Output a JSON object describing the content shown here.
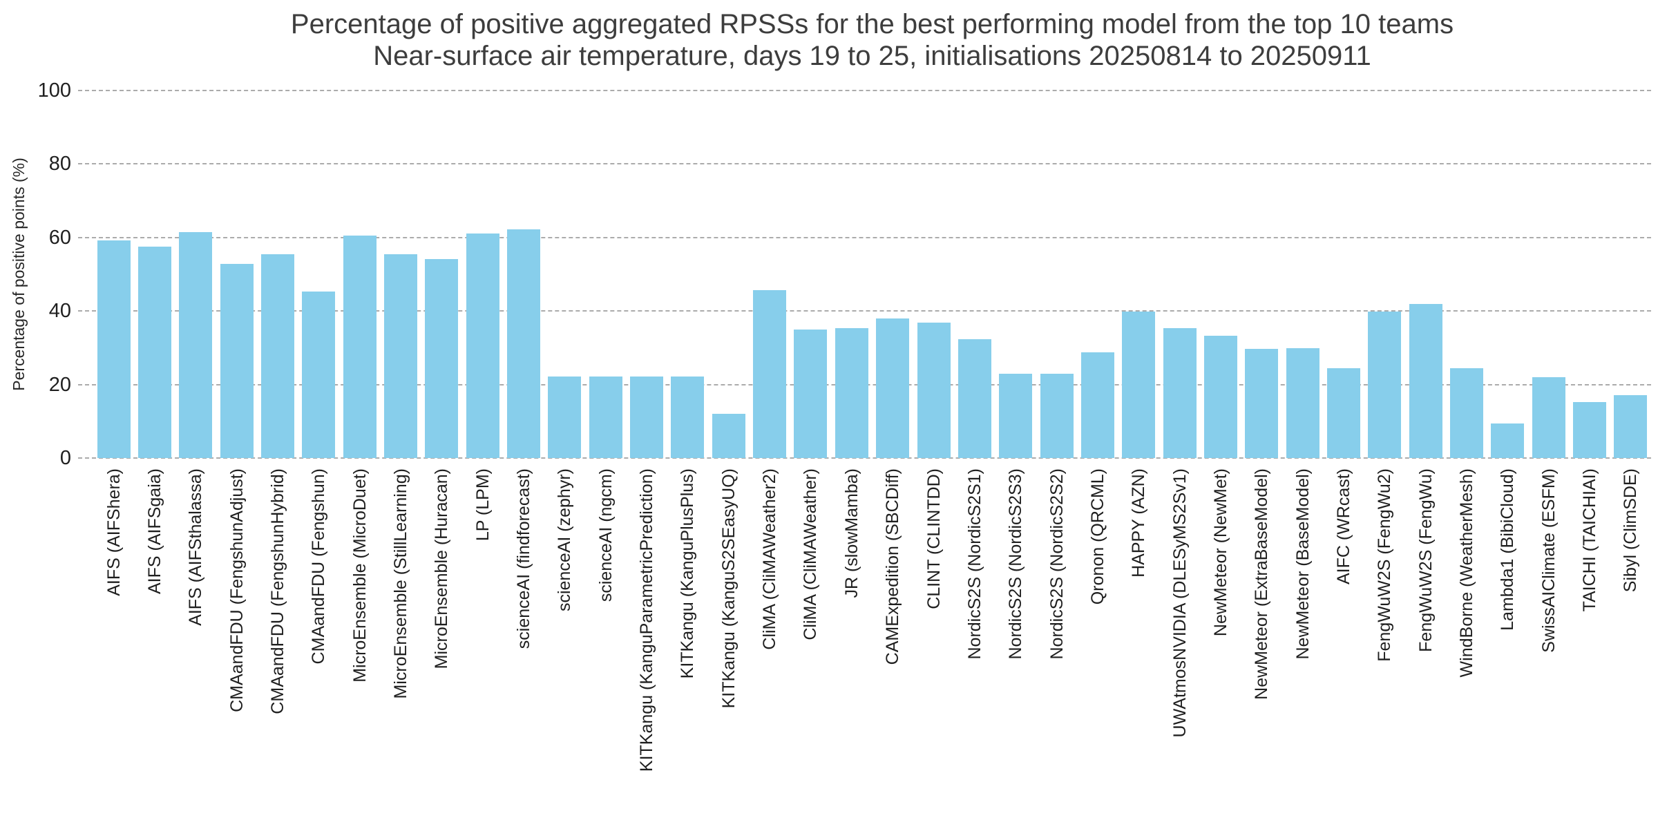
{
  "chart_data": {
    "type": "bar",
    "title": "Percentage of positive aggregated RPSSs for the best performing model from the top 10 teams",
    "subtitle": "Near-surface air temperature, days 19 to 25, initialisations 20250814 to 20250911",
    "xlabel": "",
    "ylabel": "Percentage of positive points (%)",
    "ylim": [
      0,
      100
    ],
    "yticks": [
      0,
      20,
      40,
      60,
      80,
      100
    ],
    "grid": "horizontal-dashed",
    "legend": "none",
    "bar_color": "#87CEEB",
    "categories": [
      "AIFS (AIFShera)",
      "AIFS (AIFSgaia)",
      "AIFS (AIFSthalassa)",
      "CMAandFDU (FengshunAdjust)",
      "CMAandFDU (FengshunHybrid)",
      "CMAandFDU (Fengshun)",
      "MicroEnsemble (MicroDuet)",
      "MicroEnsemble (StillLearning)",
      "MicroEnsemble (Huracan)",
      "LP (LPM)",
      "scienceAI (findforecast)",
      "scienceAI (zephyr)",
      "scienceAI (ngcm)",
      "KITKangu (KanguParametricPrediction)",
      "KITKangu (KanguPlusPlus)",
      "KITKangu (KanguS2SEasyUQ)",
      "CliMA (CliMAWeather2)",
      "CliMA (CliMAWeather)",
      "JR (slowMamba)",
      "CAMExpedition (SBCDiff)",
      "CLINT (CLINTDD)",
      "NordicS2S (NordicS2S1)",
      "NordicS2S (NordicS2S3)",
      "NordicS2S (NordicS2S2)",
      "Qronon (QRCML)",
      "HAPPY (AZN)",
      "UWAtmosNVIDIA (DLESyMS2Sv1)",
      "NewMeteor (NewMet)",
      "NewMeteor (ExtraBaseModel)",
      "NewMeteor (BaseModel)",
      "AIFC (WRcast)",
      "FengWuW2S (FengWu2)",
      "FengWuW2S (FengWu)",
      "WindBorne (WeatherMesh)",
      "Lambda1 (BibiCloud)",
      "SwissAIClimate (ESFM)",
      "TAICHI (TAICHIAI)",
      "Sibyl (ClimSDE)"
    ],
    "values": [
      59.2,
      57.5,
      61.5,
      52.9,
      55.5,
      45.3,
      60.6,
      55.5,
      54.1,
      61.1,
      62.2,
      22.1,
      22.1,
      22.1,
      22.1,
      12.1,
      45.7,
      34.9,
      35.3,
      38.0,
      36.8,
      32.3,
      23.0,
      23.0,
      28.8,
      39.9,
      35.3,
      33.3,
      29.7,
      29.9,
      24.4,
      39.9,
      42.0,
      24.4,
      9.4,
      22.0,
      15.3,
      17.1
    ]
  }
}
